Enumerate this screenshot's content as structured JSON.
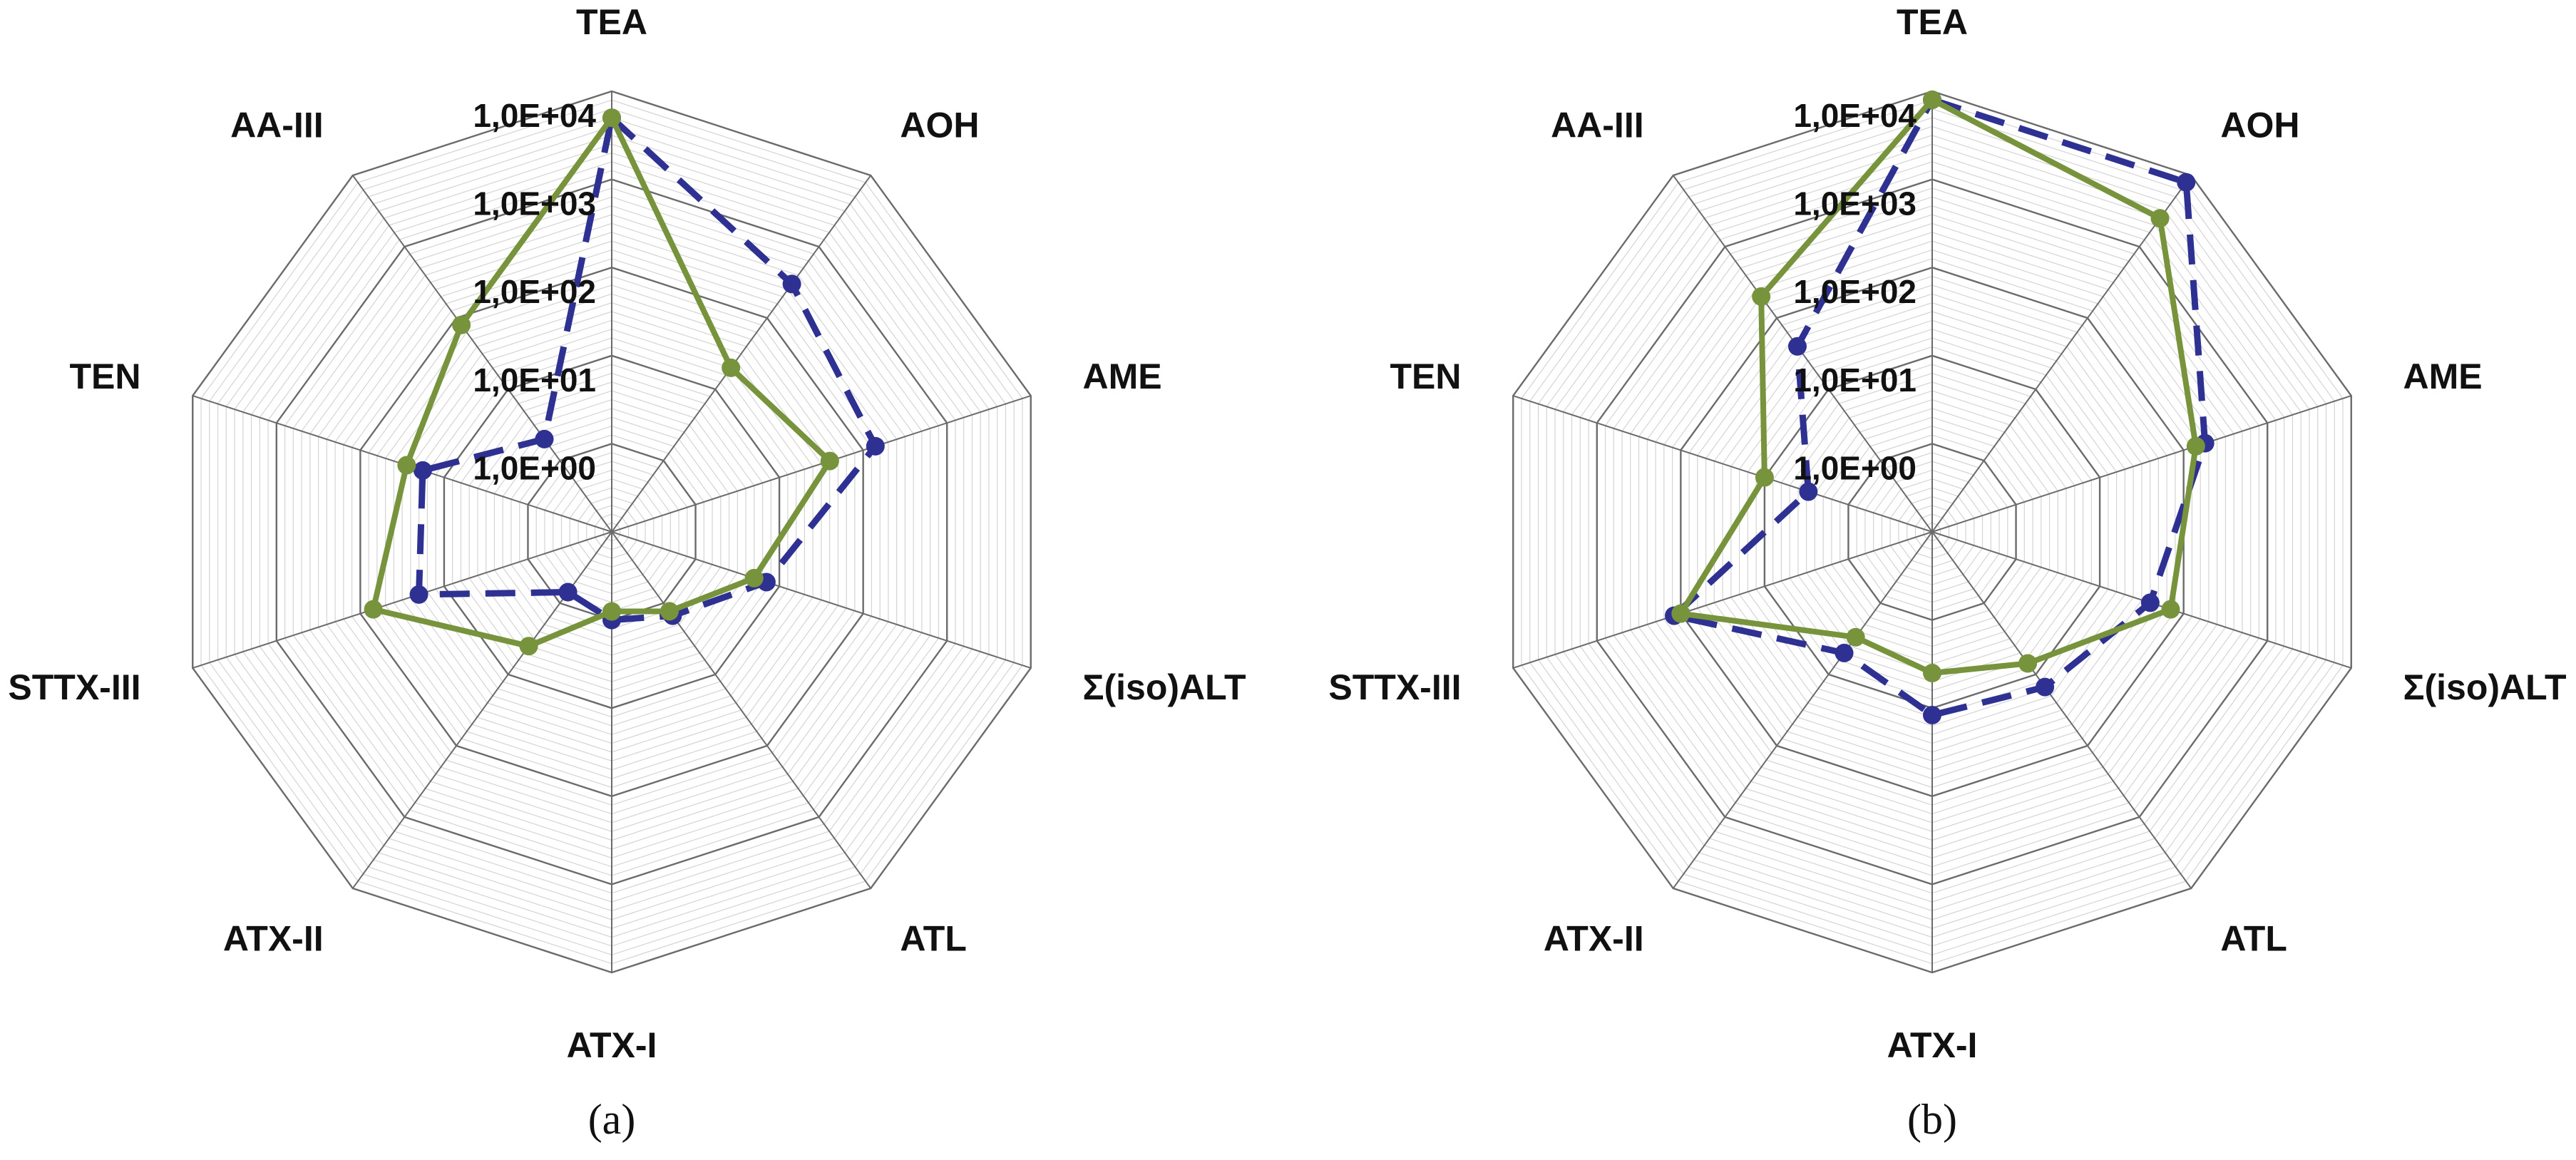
{
  "figure": {
    "panel_labels": [
      "(a)",
      "(b)"
    ]
  },
  "chart_data": [
    {
      "type": "radar",
      "panel": "(a)",
      "scale": "log",
      "rlim": [
        0.1,
        10000
      ],
      "tick_labels": [
        "1,0E+00",
        "1,0E+01",
        "1,0E+02",
        "1,0E+03",
        "1,0E+04"
      ],
      "categories": [
        "TEA",
        "AOH",
        "AME",
        "Σ(iso)ALT",
        "ATL",
        "ATX-I",
        "ATX-II",
        "STTX-III",
        "TEN",
        "AA-III"
      ],
      "grid": true,
      "series": [
        {
          "color": "#2e3192",
          "line_style": "dashed",
          "values": [
            5000,
            300,
            140,
            7,
            1.5,
            1,
            0.7,
            20,
            18,
            2
          ]
        },
        {
          "color": "#77933c",
          "line_style": "solid",
          "values": [
            5000,
            20,
            40,
            5,
            1.3,
            0.8,
            4,
            70,
            28,
            80
          ]
        }
      ]
    },
    {
      "type": "radar",
      "panel": "(b)",
      "scale": "log",
      "rlim": [
        0.1,
        10000
      ],
      "tick_labels": [
        "1,0E+00",
        "1,0E+01",
        "1,0E+02",
        "1,0E+03",
        "1,0E+04"
      ],
      "categories": [
        "TEA",
        "AOH",
        "AME",
        "Σ(iso)ALT",
        "ATL",
        "ATX-I",
        "ATX-II",
        "STTX-III",
        "TEN",
        "AA-III"
      ],
      "grid": true,
      "series": [
        {
          "color": "#2e3192",
          "line_style": "dashed",
          "values": [
            8000,
            8000,
            180,
            40,
            15,
            12,
            5,
            120,
            3,
            40
          ]
        },
        {
          "color": "#77933c",
          "line_style": "solid",
          "values": [
            8000,
            2500,
            140,
            70,
            7,
            4,
            3,
            100,
            10,
            200
          ]
        }
      ]
    }
  ]
}
